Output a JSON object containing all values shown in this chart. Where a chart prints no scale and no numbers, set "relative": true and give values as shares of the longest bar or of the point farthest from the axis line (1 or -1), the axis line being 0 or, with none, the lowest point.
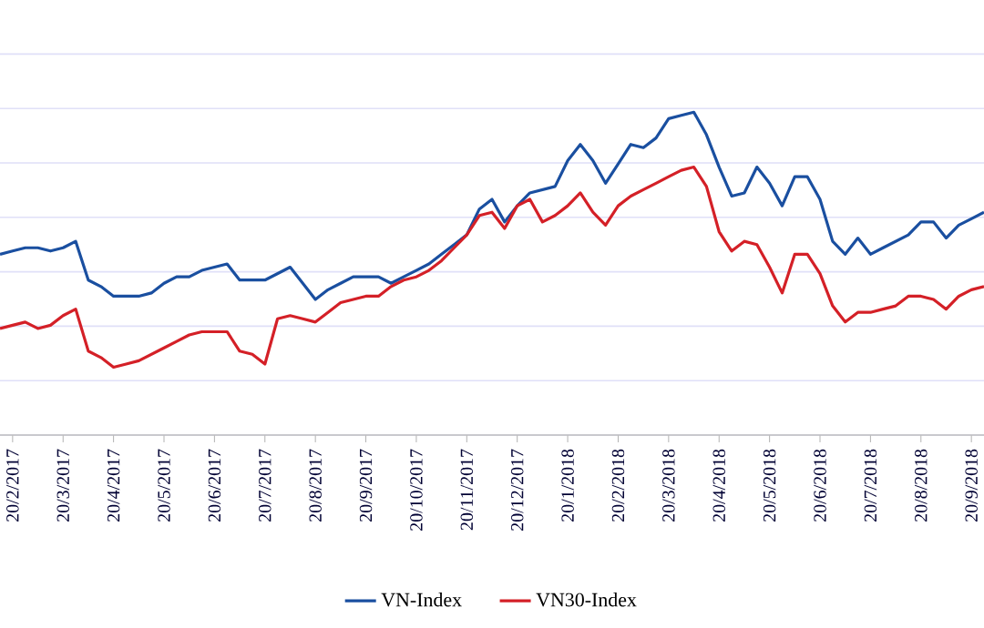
{
  "chart_data": {
    "type": "line",
    "relative": true,
    "grid": "y",
    "legend": "bottom",
    "categories": [
      null,
      "20/2/2017",
      null,
      null,
      null,
      "20/3/2017",
      null,
      null,
      null,
      "20/4/2017",
      null,
      null,
      null,
      "20/5/2017",
      null,
      null,
      null,
      "20/6/2017",
      null,
      null,
      null,
      "20/7/2017",
      null,
      null,
      null,
      "20/8/2017",
      null,
      null,
      null,
      "20/9/2017",
      null,
      null,
      null,
      "20/10/2017",
      null,
      null,
      null,
      "20/11/2017",
      null,
      null,
      null,
      "20/12/2017",
      null,
      null,
      null,
      "20/1/2018",
      null,
      null,
      null,
      "20/2/2018",
      null,
      null,
      null,
      "20/3/2018",
      null,
      null,
      null,
      "20/4/2018",
      null,
      null,
      null,
      "20/5/2018",
      null,
      null,
      null,
      "20/6/2018",
      null,
      null,
      null,
      "20/7/2018",
      null,
      null,
      null,
      "20/8/2018",
      null,
      null,
      null,
      "20/9/2018",
      null
    ],
    "series": [
      {
        "name": "VN-Index",
        "color": "#1a4fa0",
        "values": [
          0.56,
          0.57,
          0.58,
          0.58,
          0.57,
          0.58,
          0.6,
          0.48,
          0.46,
          0.43,
          0.43,
          0.43,
          0.44,
          0.47,
          0.49,
          0.49,
          0.51,
          0.52,
          0.53,
          0.48,
          0.48,
          0.48,
          0.5,
          0.52,
          0.47,
          0.42,
          0.45,
          0.47,
          0.49,
          0.49,
          0.49,
          0.47,
          0.49,
          0.51,
          0.53,
          0.56,
          0.59,
          0.62,
          0.7,
          0.73,
          0.66,
          0.71,
          0.75,
          0.76,
          0.77,
          0.85,
          0.9,
          0.85,
          0.78,
          0.84,
          0.9,
          0.89,
          0.92,
          0.98,
          0.99,
          1.0,
          0.93,
          0.83,
          0.74,
          0.75,
          0.83,
          0.78,
          0.71,
          0.8,
          0.8,
          0.73,
          0.6,
          0.56,
          0.61,
          0.56,
          0.58,
          0.6,
          0.62,
          0.66,
          0.66,
          0.61,
          0.65,
          0.67,
          0.69
        ]
      },
      {
        "name": "VN30-Index",
        "color": "#d42027",
        "values": [
          0.33,
          0.34,
          0.35,
          0.33,
          0.34,
          0.37,
          0.39,
          0.26,
          0.24,
          0.21,
          0.22,
          0.23,
          0.25,
          0.27,
          0.29,
          0.31,
          0.32,
          0.32,
          0.32,
          0.26,
          0.25,
          0.22,
          0.36,
          0.37,
          0.36,
          0.35,
          0.38,
          0.41,
          0.42,
          0.43,
          0.43,
          0.46,
          0.48,
          0.49,
          0.51,
          0.54,
          0.58,
          0.62,
          0.68,
          0.69,
          0.64,
          0.71,
          0.73,
          0.66,
          0.68,
          0.71,
          0.75,
          0.69,
          0.65,
          0.71,
          0.74,
          0.76,
          0.78,
          0.8,
          0.82,
          0.83,
          0.77,
          0.63,
          0.57,
          0.6,
          0.59,
          0.52,
          0.44,
          0.56,
          0.56,
          0.5,
          0.4,
          0.35,
          0.38,
          0.38,
          0.39,
          0.4,
          0.43,
          0.43,
          0.42,
          0.39,
          0.43,
          0.45,
          0.46
        ]
      }
    ]
  }
}
